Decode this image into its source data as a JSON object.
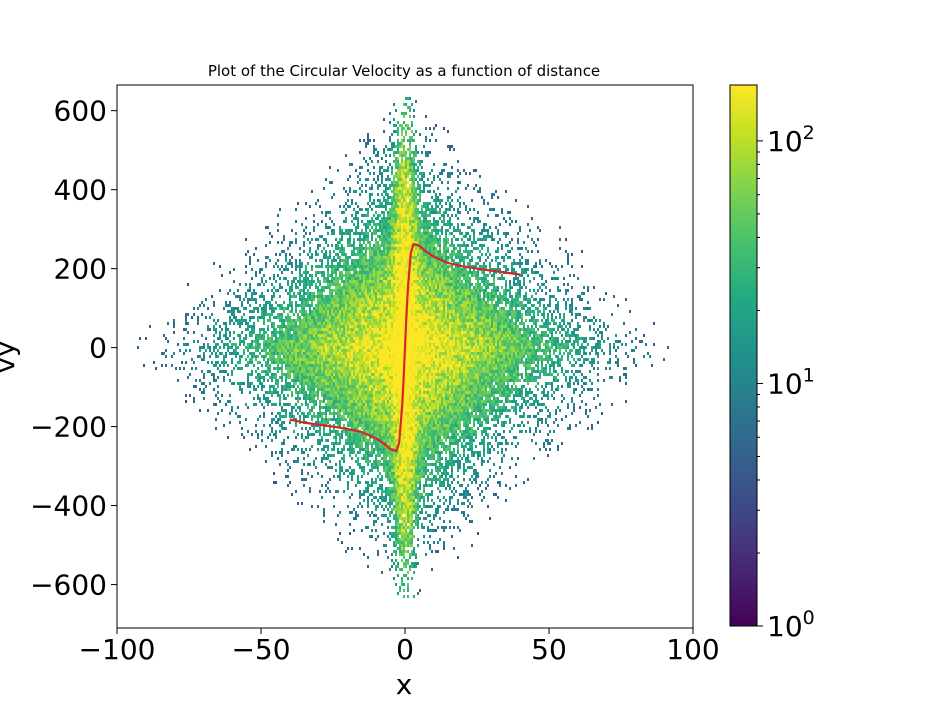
{
  "chart_data": {
    "type": "heatmap",
    "title": "Plot of the Circular Velocity as a function of distance",
    "xlabel": "x",
    "ylabel": "vy",
    "xlim": [
      -100,
      100
    ],
    "ylim": [
      -710,
      665
    ],
    "x_ticks": [
      -100,
      -50,
      0,
      50,
      100
    ],
    "y_ticks": [
      -600,
      -400,
      -200,
      0,
      200,
      400,
      600
    ],
    "x_tick_labels": [
      "−100",
      "−50",
      "0",
      "50",
      "100"
    ],
    "y_tick_labels": [
      "−600",
      "−400",
      "−200",
      "0",
      "200",
      "400",
      "600"
    ],
    "colormap": "viridis",
    "colorbar": {
      "scale": "log",
      "range": [
        1,
        170
      ],
      "ticks": [
        1,
        10,
        100
      ],
      "tick_base": "10",
      "tick_exponents": [
        "0",
        "1",
        "2"
      ]
    },
    "grid": false,
    "density_shape": {
      "description_values": "2D histogram counts of (x, vy); diamond-shaped distribution peaking near x=0, vy=0",
      "vy_extent_at_x0": [
        -650,
        640
      ],
      "x_extent_at_vy0": [
        -95,
        95
      ],
      "peak_count": 170
    },
    "series": [
      {
        "type": "line",
        "color": "#d62728",
        "x": [
          -40,
          -35,
          -30,
          -25,
          -20,
          -15,
          -10,
          -7,
          -5,
          -3,
          -2,
          -1,
          -0.5,
          0,
          0.5,
          1,
          2,
          3,
          5,
          7,
          10,
          15,
          20,
          25,
          30,
          35,
          40
        ],
        "y": [
          -182,
          -190,
          -195,
          -200,
          -206,
          -214,
          -230,
          -245,
          -258,
          -262,
          -240,
          -150,
          -80,
          0,
          80,
          150,
          240,
          262,
          258,
          245,
          230,
          214,
          206,
          200,
          195,
          190,
          185
        ]
      }
    ]
  }
}
